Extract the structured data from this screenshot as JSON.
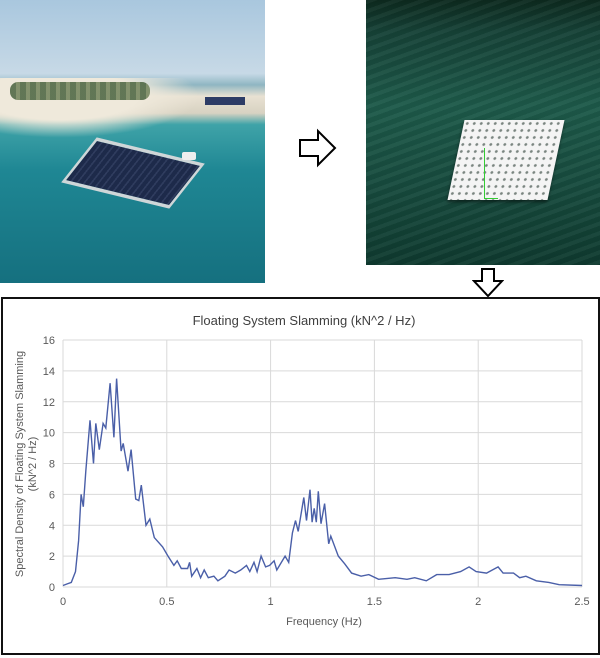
{
  "images": {
    "left_photo": "aerial photo of floating solar array near beach",
    "right_photo": "3D simulation of floating platform on water"
  },
  "icons": {
    "right_arrow": "arrow-right-icon",
    "down_arrow": "arrow-down-icon"
  },
  "colors": {
    "line": "#4a5fa8",
    "grid": "#d9d9d9",
    "axis_text": "#595959"
  },
  "chart_data": {
    "type": "line",
    "title": "Floating System Slamming (kN^2 / Hz)",
    "xlabel": "Frequency (Hz)",
    "ylabel_line1": "Spectral Density of Floating System Slamming",
    "ylabel_line2": "(kN^2 / Hz)",
    "xlim": [
      0,
      2.5
    ],
    "ylim": [
      0,
      16
    ],
    "xticks": [
      "0",
      "0.5",
      "1",
      "1.5",
      "2",
      "2.5"
    ],
    "yticks": [
      "0",
      "2",
      "4",
      "6",
      "8",
      "10",
      "12",
      "14",
      "16"
    ],
    "grid": true,
    "series": [
      {
        "x": [
          0,
          0.02,
          0.04,
          0.06,
          0.075,
          0.087,
          0.098,
          0.11,
          0.13,
          0.147,
          0.158,
          0.175,
          0.193,
          0.206,
          0.227,
          0.245,
          0.258,
          0.28,
          0.29,
          0.313,
          0.328,
          0.35,
          0.365,
          0.377,
          0.4,
          0.418,
          0.44,
          0.48,
          0.506,
          0.534,
          0.55,
          0.57,
          0.6,
          0.61,
          0.62,
          0.645,
          0.663,
          0.68,
          0.7,
          0.727,
          0.746,
          0.78,
          0.8,
          0.83,
          0.856,
          0.884,
          0.9,
          0.92,
          0.935,
          0.954,
          0.976,
          0.995,
          1.017,
          1.03,
          1.07,
          1.087,
          1.105,
          1.12,
          1.133,
          1.16,
          1.173,
          1.19,
          1.2,
          1.21,
          1.22,
          1.23,
          1.243,
          1.26,
          1.28,
          1.29,
          1.326,
          1.357,
          1.39,
          1.436,
          1.473,
          1.52,
          1.6,
          1.657,
          1.694,
          1.75,
          1.8,
          1.86,
          1.915,
          1.956,
          1.99,
          2.04,
          2.096,
          2.12,
          2.17,
          2.2,
          2.23,
          2.28,
          2.34,
          2.39,
          2.5
        ],
        "y": [
          0.1,
          0.2,
          0.3,
          1.0,
          3.0,
          6.0,
          5.2,
          7.5,
          10.8,
          8.0,
          10.6,
          8.9,
          10.6,
          10.3,
          13.2,
          9.7,
          13.5,
          8.8,
          9.3,
          7.5,
          8.9,
          5.7,
          5.6,
          6.6,
          4.0,
          4.4,
          3.2,
          2.6,
          2.0,
          1.4,
          1.7,
          1.2,
          1.2,
          1.6,
          0.7,
          1.2,
          0.6,
          1.1,
          0.6,
          0.7,
          0.4,
          0.7,
          1.1,
          0.9,
          1.1,
          1.4,
          1.0,
          1.6,
          1.0,
          2.0,
          1.3,
          1.4,
          1.7,
          1.1,
          2.0,
          1.6,
          3.5,
          4.3,
          3.6,
          5.8,
          4.3,
          6.3,
          4.2,
          5.1,
          4.2,
          6.2,
          4.1,
          5.4,
          2.8,
          3.3,
          2.0,
          1.5,
          0.9,
          0.7,
          0.8,
          0.5,
          0.6,
          0.5,
          0.6,
          0.4,
          0.8,
          0.8,
          1.0,
          1.3,
          1.0,
          0.9,
          1.3,
          0.9,
          0.9,
          0.6,
          0.7,
          0.4,
          0.3,
          0.15,
          0.1
        ]
      }
    ]
  }
}
